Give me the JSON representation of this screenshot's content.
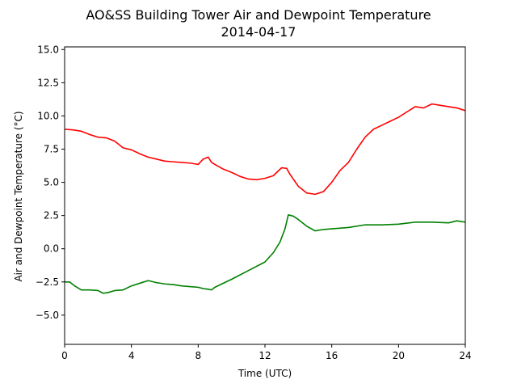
{
  "chart_data": {
    "type": "line",
    "title": "AO&SS Building Tower Air and Dewpoint Temperature",
    "subtitle": "2014-04-17",
    "xlabel": "Time (UTC)",
    "ylabel": "Air and Dewpoint Temperature (°C)",
    "xlim": [
      0,
      24
    ],
    "ylim": [
      -7.2,
      15.2
    ],
    "xticks": [
      0,
      4,
      8,
      12,
      16,
      20,
      24
    ],
    "yticks": [
      -5.0,
      -2.5,
      0.0,
      2.5,
      5.0,
      7.5,
      10.0,
      12.5,
      15.0
    ],
    "xtick_labels": [
      "0",
      "4",
      "8",
      "12",
      "16",
      "20",
      "24"
    ],
    "ytick_labels": [
      "−5.0",
      "−2.5",
      "0.0",
      "2.5",
      "5.0",
      "7.5",
      "10.0",
      "12.5",
      "15.0"
    ],
    "grid": false,
    "legend": "none",
    "series": [
      {
        "color": "#ff0000",
        "x": [
          0,
          0.5,
          1,
          1.5,
          2,
          2.5,
          3,
          3.5,
          4,
          4.5,
          5,
          5.5,
          6,
          6.5,
          7,
          7.5,
          8,
          8.3,
          8.6,
          8.8,
          9,
          9.5,
          10,
          10.5,
          11,
          11.5,
          12,
          12.5,
          13,
          13.3,
          13.5,
          14,
          14.5,
          15,
          15.5,
          16,
          16.5,
          17,
          17.5,
          18,
          18.5,
          19,
          19.5,
          20,
          20.5,
          21,
          21.5,
          22,
          22.5,
          23,
          23.5,
          24
        ],
        "y": [
          9.0,
          8.95,
          8.85,
          8.6,
          8.4,
          8.35,
          8.1,
          7.6,
          7.45,
          7.15,
          6.9,
          6.75,
          6.6,
          6.55,
          6.5,
          6.45,
          6.35,
          6.75,
          6.9,
          6.5,
          6.35,
          6.0,
          5.75,
          5.45,
          5.25,
          5.2,
          5.3,
          5.5,
          6.1,
          6.05,
          5.6,
          4.7,
          4.2,
          4.1,
          4.3,
          5.0,
          5.9,
          6.5,
          7.5,
          8.4,
          9.0,
          9.3,
          9.6,
          9.9,
          10.3,
          10.7,
          10.6,
          10.9,
          10.8,
          10.7,
          10.6,
          10.4
        ]
      },
      {
        "color": "#008000",
        "x": [
          0,
          0.3,
          0.6,
          1,
          1.5,
          2,
          2.3,
          2.6,
          3,
          3.5,
          4,
          4.5,
          5,
          5.5,
          6,
          6.5,
          7,
          7.5,
          8,
          8.3,
          8.6,
          8.8,
          9,
          10,
          11,
          12,
          12.5,
          12.9,
          13.2,
          13.4,
          13.7,
          14,
          14.5,
          15,
          15.5,
          16,
          17,
          18,
          19,
          20,
          21,
          22,
          23,
          23.5,
          24
        ],
        "y": [
          -2.5,
          -2.5,
          -2.8,
          -3.1,
          -3.1,
          -3.15,
          -3.35,
          -3.3,
          -3.15,
          -3.1,
          -2.8,
          -2.6,
          -2.4,
          -2.55,
          -2.65,
          -2.7,
          -2.8,
          -2.85,
          -2.9,
          -3.0,
          -3.05,
          -3.1,
          -2.9,
          -2.3,
          -1.65,
          -1.0,
          -0.3,
          0.5,
          1.5,
          2.55,
          2.45,
          2.2,
          1.7,
          1.35,
          1.45,
          1.5,
          1.6,
          1.8,
          1.8,
          1.85,
          2.0,
          2.0,
          1.95,
          2.1,
          2.0
        ]
      }
    ]
  }
}
